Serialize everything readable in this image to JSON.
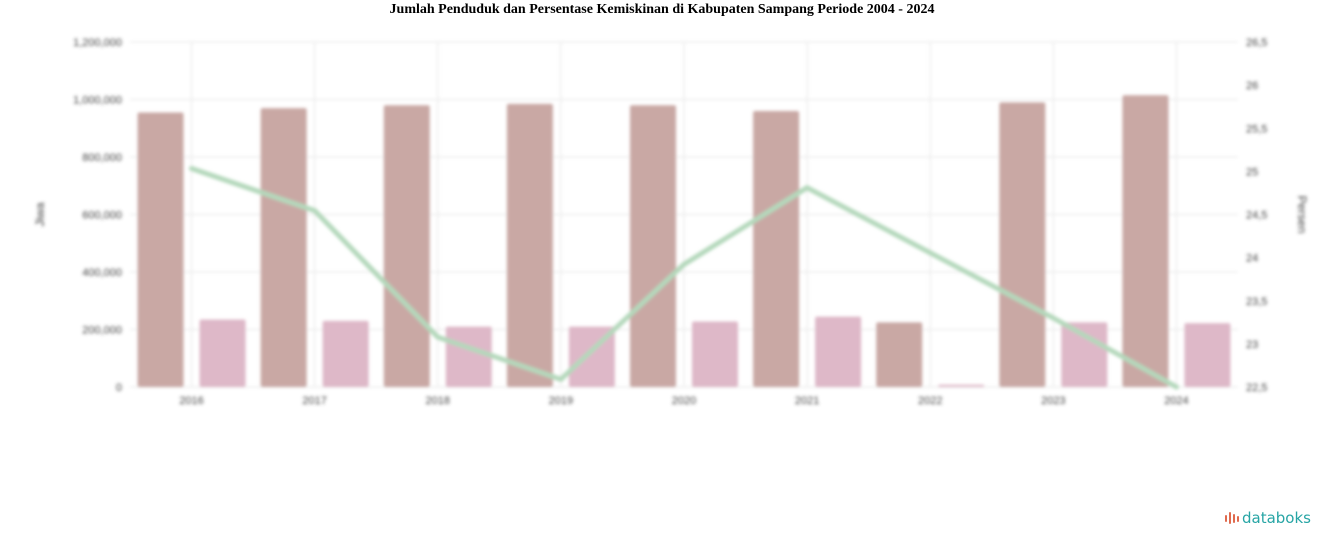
{
  "brand": {
    "name": "databoks",
    "color_icon": "#e06a4e",
    "color_text": "#27a5a5",
    "icon": "databoks-logo-icon"
  },
  "colors": {
    "population_bar": "#c9a8a4",
    "poverty_bar": "#deb8c8",
    "poverty_line": "#b4d8bb",
    "grid": "#e6e6e6"
  },
  "chart_data": {
    "type": "bar",
    "title": "Jumlah Penduduk dan Persentase Kemiskinan di Kabupaten Sampang Periode 2004 - 2024",
    "categories": [
      "2016",
      "2017",
      "2018",
      "2019",
      "2020",
      "2021",
      "2022",
      "2023",
      "2024"
    ],
    "series": [
      {
        "kind": "bar",
        "axis": "left",
        "color": "#c9a8a4",
        "values": [
          955000,
          970000,
          980000,
          985000,
          980000,
          960000,
          225000,
          990000,
          1015000
        ]
      },
      {
        "kind": "bar",
        "axis": "left",
        "color": "#deb8c8",
        "values": [
          235000,
          230000,
          210000,
          210000,
          228000,
          245000,
          8000,
          225000,
          222000
        ]
      },
      {
        "kind": "line",
        "axis": "right",
        "color": "#b4d8bb",
        "values": [
          24.85,
          24.3,
          22.65,
          22.1,
          23.6,
          24.6,
          23.75,
          22.9,
          22.0
        ]
      }
    ],
    "ylabel": "Jiwa",
    "y2label": "Persen",
    "ylim": [
      0,
      1200000
    ],
    "y2lim": [
      22,
      26.5
    ],
    "yticks": [
      "0",
      "200,000",
      "400,000",
      "600,000",
      "800,000",
      "1,000,000",
      "1,200,000"
    ],
    "y2ticks": [
      "22,5",
      "23",
      "23,5",
      "24",
      "24,5",
      "25",
      "25,5",
      "26",
      "26,5"
    ],
    "grid": true,
    "legend": "none"
  }
}
